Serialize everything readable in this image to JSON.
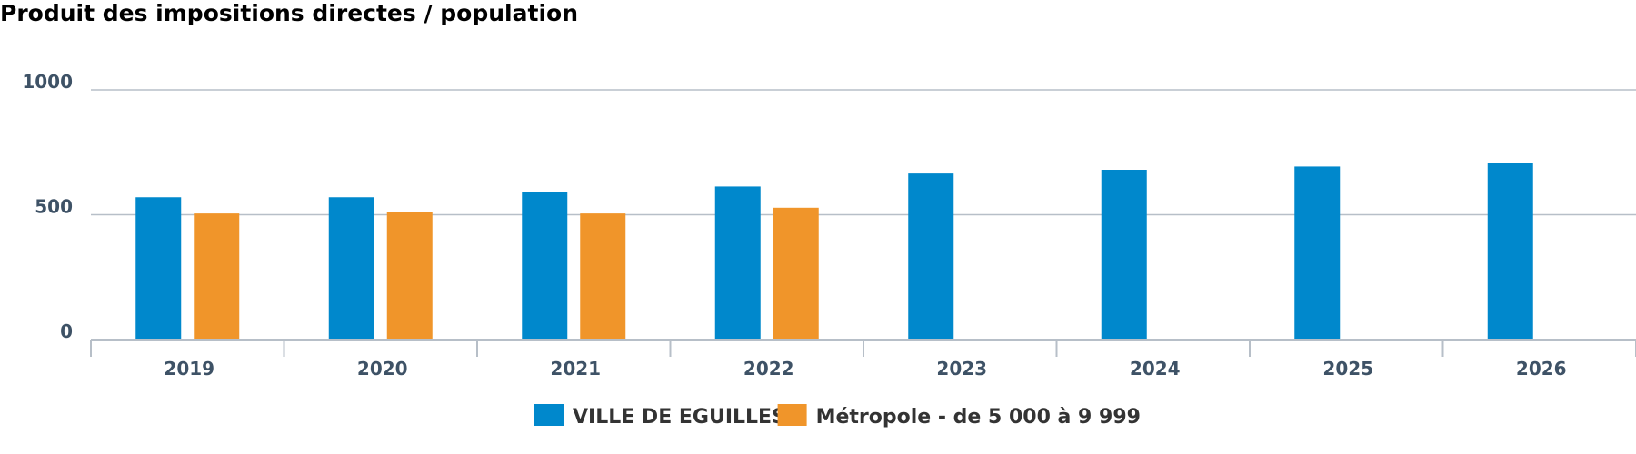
{
  "chart_data": {
    "type": "bar",
    "title": "Produit des impositions directes / population",
    "xlabel": "",
    "ylabel": "",
    "ylim": [
      0,
      1000
    ],
    "yticks": [
      "0",
      "500",
      "1000"
    ],
    "categories": [
      "2019",
      "2020",
      "2021",
      "2022",
      "2023",
      "2024",
      "2025",
      "2026"
    ],
    "series": [
      {
        "name": "VILLE DE EGUILLES",
        "color": "#0088cc",
        "values": [
          570,
          570,
          592,
          613,
          665,
          680,
          693,
          707
        ]
      },
      {
        "name": "Métropole - de 5 000 à 9 999",
        "color": "#f0952a",
        "values": [
          505,
          512,
          505,
          528,
          null,
          null,
          null,
          null
        ]
      }
    ],
    "grid": true,
    "legend": "bottom-center"
  }
}
